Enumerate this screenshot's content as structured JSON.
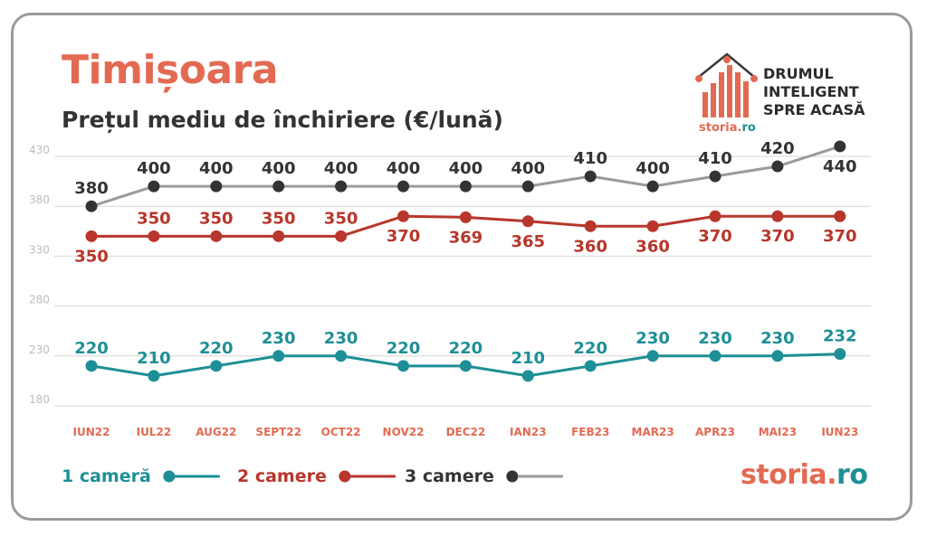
{
  "header": {
    "title": "Timișoara",
    "subtitle": "Prețul mediu de închiriere (€/lună)"
  },
  "brand": {
    "tagline": [
      "DRUMUL",
      "INTELIGENT",
      "SPRE ACASĂ"
    ],
    "logo_main": "storia",
    "logo_dot": ".",
    "logo_tld": "ro"
  },
  "colors": {
    "one_room": "#1e8f96",
    "two_rooms": "#b8362b",
    "three_rooms_line": "#9a9a9a",
    "three_rooms_marker": "#333333",
    "accent": "#e36a52"
  },
  "chart_data": {
    "type": "line",
    "title": "Prețul mediu de închiriere (€/lună)",
    "xlabel": "",
    "ylabel": "",
    "ylim": [
      180,
      440
    ],
    "yticks": [
      180,
      230,
      280,
      330,
      380,
      430
    ],
    "grid": true,
    "legend": "bottom-left",
    "categories": [
      "IUN22",
      "IUL22",
      "AUG22",
      "SEPT22",
      "OCT22",
      "NOV22",
      "DEC22",
      "IAN23",
      "FEB23",
      "MAR23",
      "APR23",
      "MAI23",
      "IUN23"
    ],
    "series": [
      {
        "name": "1 cameră",
        "color": "#1e8f96",
        "values": [
          220,
          210,
          220,
          230,
          230,
          220,
          220,
          210,
          220,
          230,
          230,
          230,
          232
        ]
      },
      {
        "name": "2 camere",
        "color": "#b8362b",
        "values": [
          350,
          350,
          350,
          350,
          350,
          370,
          369,
          365,
          360,
          360,
          370,
          370,
          370
        ]
      },
      {
        "name": "3 camere",
        "color": "#333333",
        "values": [
          380,
          400,
          400,
          400,
          400,
          400,
          400,
          400,
          410,
          400,
          410,
          420,
          440
        ]
      }
    ]
  }
}
